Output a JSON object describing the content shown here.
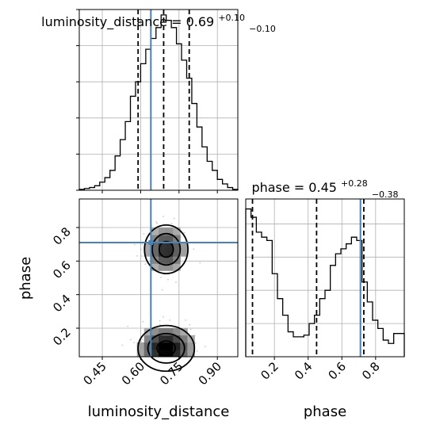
{
  "chart_data": [
    {
      "type": "histogram",
      "panel": "luminosity_distance-marginal",
      "title": {
        "param": "luminosity_distance",
        "value": "0.69",
        "plus": "+0.10",
        "minus": "−0.10"
      },
      "xlim": [
        0.36,
        0.98
      ],
      "bins": [
        0.36,
        0.38,
        0.4,
        0.42,
        0.44,
        0.46,
        0.48,
        0.5,
        0.52,
        0.54,
        0.56,
        0.58,
        0.6,
        0.62,
        0.64,
        0.66,
        0.68,
        0.7,
        0.72,
        0.74,
        0.76,
        0.78,
        0.8,
        0.82,
        0.84,
        0.86,
        0.88,
        0.9,
        0.92,
        0.94,
        0.96,
        0.98
      ],
      "values": [
        0.5,
        1,
        1.5,
        2.5,
        4.5,
        7,
        11,
        19,
        28,
        38,
        52,
        60,
        70,
        78,
        84,
        90,
        97,
        94,
        90,
        81,
        72,
        62,
        48,
        35,
        24,
        16,
        11,
        6,
        3.5,
        1.5,
        0.5
      ],
      "ylim": [
        0,
        100
      ],
      "quantiles": [
        0.59,
        0.69,
        0.79
      ],
      "truth": 0.64
    },
    {
      "type": "histogram",
      "panel": "phase-marginal",
      "title": {
        "param": "phase",
        "value": "0.45",
        "plus": "+0.28",
        "minus": "−0.38"
      },
      "xlim": [
        0.03,
        0.97
      ],
      "bins": [
        0.03,
        0.0613,
        0.0927,
        0.124,
        0.1553,
        0.1867,
        0.218,
        0.2493,
        0.2807,
        0.312,
        0.3433,
        0.3747,
        0.406,
        0.4373,
        0.4687,
        0.5,
        0.5313,
        0.5627,
        0.594,
        0.6253,
        0.6567,
        0.688,
        0.7193,
        0.7507,
        0.782,
        0.8133,
        0.8447,
        0.876,
        0.9073,
        0.9387,
        0.97
      ],
      "values": [
        89,
        84,
        75,
        72,
        70,
        50,
        35,
        25,
        15,
        12,
        12,
        13,
        20,
        25,
        35,
        40,
        55,
        62,
        65,
        68,
        72,
        70,
        45,
        33,
        22,
        17,
        10,
        8,
        14,
        14
      ],
      "ylim": [
        0,
        95
      ],
      "quantiles": [
        0.07,
        0.45,
        0.73
      ],
      "truth": 0.71
    },
    {
      "type": "heatmap",
      "panel": "luminosity_distance-vs-phase-2d",
      "xlim": [
        0.36,
        0.98
      ],
      "ylim": [
        0.03,
        0.97
      ],
      "xlabel": "luminosity_distance",
      "ylabel": "phase",
      "xticks": [
        "0.45",
        "0.60",
        "0.75",
        "0.90"
      ],
      "yticks": [
        "0.2",
        "0.4",
        "0.6",
        "0.8"
      ],
      "truth": [
        0.64,
        0.71
      ],
      "modes": [
        {
          "x": 0.7,
          "y": 0.67,
          "sx": 0.05,
          "sy": 0.085,
          "w": 1.0
        },
        {
          "x": 0.7,
          "y": 0.08,
          "sx": 0.065,
          "sy": 0.08,
          "w": 1.25
        }
      ]
    }
  ],
  "phase_xticks": [
    "0.2",
    "0.4",
    "0.6",
    "0.8"
  ],
  "phase_xlabel": "phase"
}
